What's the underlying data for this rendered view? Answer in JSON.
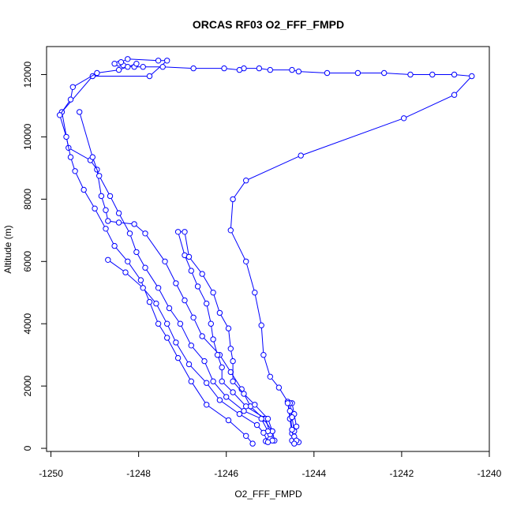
{
  "chart_data": {
    "type": "line",
    "title": "ORCAS RF03 O2_FFF_FMPD",
    "xlabel": "O2_FFF_FMPD",
    "ylabel": "Altitude (m)",
    "xlim": [
      -1250.1,
      -1240.0
    ],
    "ylim": [
      -100,
      12900
    ],
    "xticks": [
      -1250,
      -1248,
      -1246,
      -1244,
      -1242,
      -1240
    ],
    "yticks": [
      0,
      2000,
      4000,
      6000,
      8000,
      10000,
      12000
    ],
    "grid": false,
    "marker": "open-circle",
    "colors": {
      "series": "#0000ff",
      "axes": "#000000"
    },
    "series": [
      {
        "points": [
          [
            -1244.5,
            250
          ],
          [
            -1244.35,
            200
          ],
          [
            -1244.5,
            480
          ],
          [
            -1244.55,
            950
          ],
          [
            -1244.6,
            1500
          ],
          [
            -1244.8,
            1950
          ],
          [
            -1245.0,
            2300
          ],
          [
            -1245.15,
            3000
          ],
          [
            -1245.2,
            3950
          ],
          [
            -1245.35,
            5000
          ],
          [
            -1245.55,
            6000
          ],
          [
            -1245.9,
            7000
          ],
          [
            -1245.85,
            8000
          ],
          [
            -1245.55,
            8600
          ],
          [
            -1244.3,
            9400
          ],
          [
            -1241.95,
            10600
          ],
          [
            -1240.8,
            11350
          ],
          [
            -1240.4,
            11950
          ],
          [
            -1240.8,
            12000
          ],
          [
            -1241.3,
            12000
          ],
          [
            -1241.8,
            12000
          ],
          [
            -1242.4,
            12050
          ],
          [
            -1243.0,
            12050
          ],
          [
            -1243.7,
            12050
          ],
          [
            -1244.35,
            12100
          ],
          [
            -1244.5,
            12150
          ],
          [
            -1245.0,
            12150
          ],
          [
            -1245.25,
            12200
          ],
          [
            -1245.6,
            12200
          ],
          [
            -1245.7,
            12150
          ],
          [
            -1246.05,
            12200
          ],
          [
            -1246.75,
            12200
          ],
          [
            -1247.45,
            12250
          ],
          [
            -1247.9,
            12250
          ],
          [
            -1248.1,
            12250
          ],
          [
            -1248.35,
            12300
          ],
          [
            -1248.45,
            12350
          ],
          [
            -1248.55,
            12350
          ],
          [
            -1248.4,
            12400
          ],
          [
            -1248.25,
            12500
          ],
          [
            -1247.55,
            12450
          ],
          [
            -1247.35,
            12450
          ],
          [
            -1247.75,
            11950
          ],
          [
            -1249.05,
            11950
          ],
          [
            -1249.75,
            10800
          ],
          [
            -1249.6,
            9650
          ],
          [
            -1249.1,
            9250
          ],
          [
            -1248.95,
            8950
          ],
          [
            -1248.85,
            8100
          ],
          [
            -1248.75,
            7650
          ],
          [
            -1248.7,
            7300
          ],
          [
            -1248.45,
            7250
          ],
          [
            -1248.1,
            7200
          ],
          [
            -1247.85,
            6900
          ],
          [
            -1247.4,
            6000
          ],
          [
            -1247.15,
            5300
          ],
          [
            -1246.95,
            4750
          ],
          [
            -1246.75,
            4200
          ],
          [
            -1246.55,
            3600
          ],
          [
            -1246.15,
            3000
          ],
          [
            -1245.9,
            2450
          ],
          [
            -1245.65,
            1900
          ],
          [
            -1245.45,
            1350
          ],
          [
            -1245.15,
            950
          ],
          [
            -1244.95,
            550
          ],
          [
            -1244.9,
            250
          ]
        ]
      },
      {
        "points": [
          [
            -1245.1,
            230
          ],
          [
            -1245.0,
            450
          ],
          [
            -1245.1,
            950
          ],
          [
            -1245.55,
            1350
          ],
          [
            -1245.85,
            1800
          ],
          [
            -1246.1,
            2150
          ],
          [
            -1246.1,
            2600
          ],
          [
            -1246.2,
            3000
          ],
          [
            -1246.3,
            3500
          ],
          [
            -1246.35,
            4000
          ],
          [
            -1246.45,
            4650
          ],
          [
            -1246.65,
            5200
          ],
          [
            -1246.8,
            5700
          ],
          [
            -1246.95,
            6200
          ],
          [
            -1247.1,
            6950
          ],
          [
            -1246.95,
            6950
          ],
          [
            -1246.85,
            6150
          ],
          [
            -1246.55,
            5600
          ],
          [
            -1246.3,
            5000
          ],
          [
            -1246.15,
            4350
          ],
          [
            -1245.95,
            3850
          ],
          [
            -1245.9,
            3200
          ],
          [
            -1245.85,
            2800
          ],
          [
            -1245.85,
            2150
          ],
          [
            -1245.6,
            1750
          ],
          [
            -1245.35,
            1400
          ],
          [
            -1245.05,
            950
          ],
          [
            -1244.95,
            550
          ],
          [
            -1244.95,
            250
          ]
        ]
      },
      {
        "points": [
          [
            -1245.4,
            150
          ],
          [
            -1245.55,
            400
          ],
          [
            -1245.95,
            900
          ],
          [
            -1246.45,
            1400
          ],
          [
            -1246.8,
            2150
          ],
          [
            -1247.1,
            2900
          ],
          [
            -1247.35,
            3550
          ],
          [
            -1247.55,
            4000
          ],
          [
            -1247.75,
            4700
          ],
          [
            -1247.95,
            5400
          ],
          [
            -1248.25,
            6000
          ],
          [
            -1248.55,
            6500
          ],
          [
            -1248.75,
            7050
          ],
          [
            -1249.0,
            7700
          ],
          [
            -1249.25,
            8300
          ],
          [
            -1249.45,
            8900
          ],
          [
            -1249.55,
            9350
          ],
          [
            -1249.65,
            10000
          ],
          [
            -1249.8,
            10700
          ],
          [
            -1249.55,
            11200
          ],
          [
            -1249.5,
            11600
          ],
          [
            -1248.95,
            12050
          ],
          [
            -1248.45,
            12150
          ],
          [
            -1248.25,
            12250
          ],
          [
            -1248.05,
            12350
          ]
        ]
      },
      {
        "points": [
          [
            -1244.45,
            380
          ],
          [
            -1244.4,
            700
          ],
          [
            -1244.45,
            1100
          ],
          [
            -1244.5,
            1450
          ],
          [
            -1244.55,
            1450
          ],
          [
            -1244.5,
            1000
          ],
          [
            -1244.45,
            550
          ],
          [
            -1244.4,
            250
          ],
          [
            -1244.45,
            150
          ],
          [
            -1244.5,
            600
          ],
          [
            -1244.55,
            1200
          ],
          [
            -1244.6,
            1450
          ]
        ]
      },
      {
        "points": [
          [
            -1249.35,
            10800
          ],
          [
            -1249.05,
            9350
          ],
          [
            -1248.9,
            8750
          ],
          [
            -1248.65,
            8100
          ],
          [
            -1248.45,
            7550
          ],
          [
            -1248.2,
            6900
          ],
          [
            -1248.05,
            6300
          ],
          [
            -1247.85,
            5800
          ],
          [
            -1247.55,
            5150
          ],
          [
            -1247.3,
            4500
          ],
          [
            -1247.05,
            4000
          ],
          [
            -1246.8,
            3300
          ],
          [
            -1246.5,
            2800
          ],
          [
            -1246.3,
            2150
          ],
          [
            -1246.0,
            1650
          ],
          [
            -1245.6,
            1200
          ],
          [
            -1245.2,
            950
          ],
          [
            -1245.05,
            550
          ]
        ]
      },
      {
        "points": [
          [
            -1248.7,
            6050
          ],
          [
            -1248.3,
            5650
          ],
          [
            -1247.9,
            5150
          ],
          [
            -1247.6,
            4650
          ],
          [
            -1247.35,
            4000
          ],
          [
            -1247.15,
            3400
          ],
          [
            -1246.85,
            2700
          ],
          [
            -1246.45,
            2100
          ],
          [
            -1246.15,
            1550
          ],
          [
            -1245.7,
            1100
          ],
          [
            -1245.3,
            750
          ],
          [
            -1245.15,
            500
          ],
          [
            -1245.05,
            200
          ]
        ]
      }
    ]
  }
}
